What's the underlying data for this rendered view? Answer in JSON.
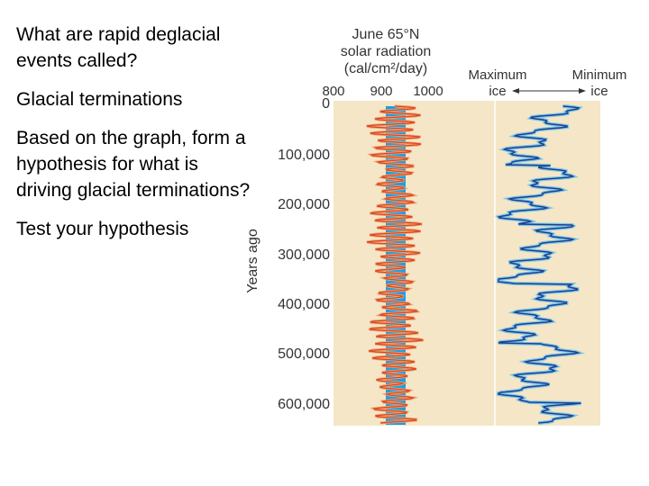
{
  "slide": {
    "question": "What are rapid deglacial events called?",
    "answer": "Glacial terminations",
    "prompt": "Based on the graph, form a hypothesis for what is driving glacial terminations?",
    "task": "Test your hypothesis"
  },
  "figure": {
    "solar_title_1": "June 65°N",
    "solar_title_2": "solar radiation",
    "solar_units": "(cal/cm²/day)",
    "solar_ticks": [
      "800",
      "900",
      "1000"
    ],
    "ice_max_1": "Maximum",
    "ice_max_2": "ice",
    "ice_min_1": "Minimum",
    "ice_min_2": "ice",
    "y_axis_label": "Years ago",
    "y_ticks": [
      "0",
      "100,000",
      "200,000",
      "300,000",
      "400,000",
      "500,000",
      "600,000"
    ],
    "colors": {
      "panel_bg": "#f4e6c6",
      "blue_band": "#1aa0e6",
      "warm": "#d9462a",
      "cool": "#f0a46a",
      "ice_dark": "#1f3f8f",
      "ice_light": "#7ec8e8"
    }
  },
  "chart_data": {
    "type": "line",
    "series": [
      {
        "y_range": [
          0,
          620000
        ],
        "x_range": [
          800,
          1000
        ]
      },
      {
        "y_range": [
          0,
          620000
        ]
      }
    ],
    "ylim": [
      0,
      620000
    ]
  }
}
